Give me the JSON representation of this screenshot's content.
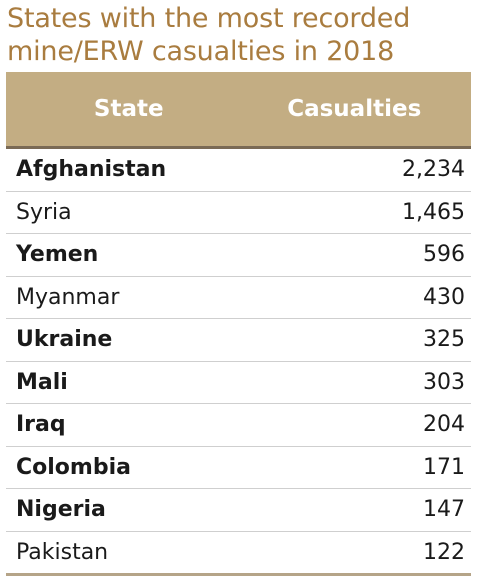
{
  "title_line1": "States with the most recorded",
  "title_line2": "mine/ERW casualties in 2018",
  "chart_data": {
    "type": "table",
    "title": "States with the most recorded mine/ERW casualties in 2018",
    "columns": [
      "State",
      "Casualties"
    ],
    "rows": [
      {
        "state": "Afghanistan",
        "casualties": "2,234",
        "bold": true
      },
      {
        "state": "Syria",
        "casualties": "1,465",
        "bold": false
      },
      {
        "state": "Yemen",
        "casualties": "596",
        "bold": true
      },
      {
        "state": "Myanmar",
        "casualties": "430",
        "bold": false
      },
      {
        "state": "Ukraine",
        "casualties": "325",
        "bold": true
      },
      {
        "state": "Mali",
        "casualties": "303",
        "bold": true
      },
      {
        "state": "Iraq",
        "casualties": "204",
        "bold": true
      },
      {
        "state": "Colombia",
        "casualties": "171",
        "bold": true
      },
      {
        "state": "Nigeria",
        "casualties": "147",
        "bold": true
      },
      {
        "state": "Pakistan",
        "casualties": "122",
        "bold": false
      }
    ]
  },
  "colors": {
    "title": "#a97c3f",
    "header_bg": "#c3ad83",
    "header_text": "#ffffff"
  }
}
